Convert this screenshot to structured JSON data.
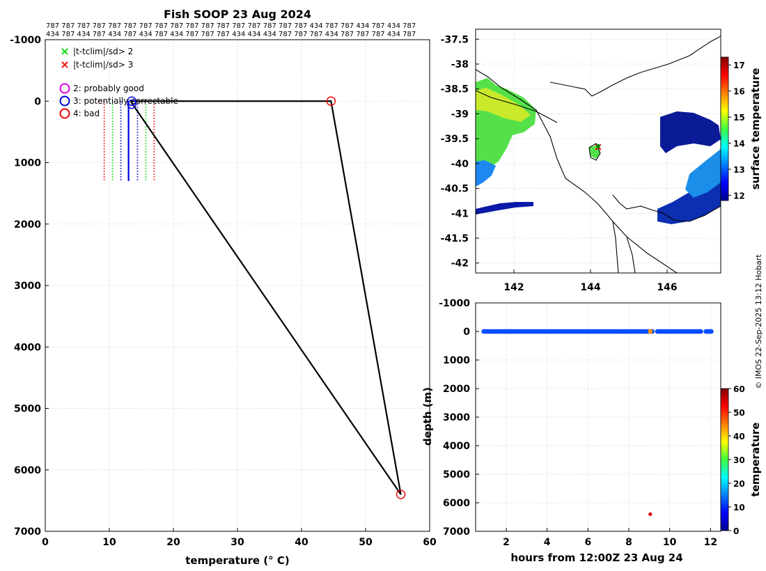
{
  "chart_data": [
    {
      "type": "line",
      "title": "Fish SOOP 23 Aug 2024",
      "xlabel": "temperature (° C)",
      "xlim": [
        0,
        60
      ],
      "ylim": [
        -1000,
        7000
      ],
      "y_reversed": true,
      "xticks": [
        "0",
        "10",
        "20",
        "30",
        "40",
        "50",
        "60"
      ],
      "yticks": [
        "-1000",
        "0",
        "1000",
        "2000",
        "3000",
        "4000",
        "5000",
        "6000",
        "7000"
      ],
      "grid": true,
      "top_labels_row1": "787 787 787 787 787 787 787 787 787 787 787 787 787 787 787 787 787 434 787 787 434 787 434 787",
      "top_labels_row2": "434 787 434 787 434 787 434 787 434 787 787 787 434 434 434 787 787 787 434 787 787 787 434 787",
      "legend": [
        {
          "label": "|t-tclim|/sd> 2",
          "marker": "x",
          "color": "#00dd00"
        },
        {
          "label": "|t-tclim|/sd> 3",
          "marker": "x",
          "color": "#ee0000"
        },
        {
          "label": "2: probably good",
          "marker": "o",
          "color": "#dd00dd"
        },
        {
          "label": "3: potentially correctable",
          "marker": "o",
          "color": "#0000dd"
        },
        {
          "label": "4: bad",
          "marker": "o",
          "color": "#ee0000"
        }
      ],
      "profile": {
        "x": [
          13.3,
          44.6,
          55.5,
          13.3
        ],
        "y": [
          0,
          0,
          6400,
          0
        ],
        "color": "#000000"
      },
      "flag_markers": [
        {
          "x": 44.6,
          "y": 0,
          "flag": "4: bad",
          "color": "#ee0000"
        },
        {
          "x": 55.5,
          "y": 6400,
          "flag": "4: bad",
          "color": "#ee0000"
        },
        {
          "x": 13.5,
          "y": 0,
          "flag": "3: potentially correctable",
          "color": "#0000dd"
        },
        {
          "x": 13.5,
          "y": 50,
          "flag": "3: potentially correctable",
          "color": "#0000dd"
        }
      ],
      "climatology_bounds": [
        {
          "x": 9.2,
          "style": "dotted",
          "color": "#ee0000"
        },
        {
          "x": 10.5,
          "style": "dotted",
          "color": "#00dd00"
        },
        {
          "x": 11.8,
          "style": "dotted",
          "color": "#0000dd"
        },
        {
          "x": 13.0,
          "style": "solid",
          "color": "#0000dd"
        },
        {
          "x": 14.4,
          "style": "dotted",
          "color": "#0000dd"
        },
        {
          "x": 15.7,
          "style": "dotted",
          "color": "#00dd00"
        },
        {
          "x": 17.0,
          "style": "dotted",
          "color": "#ee0000"
        }
      ],
      "climatology_depth": [
        0,
        1300
      ]
    },
    {
      "type": "heatmap",
      "xticks": [
        "142",
        "144",
        "146"
      ],
      "yticks": [
        "-37.5",
        "-38",
        "-38.5",
        "-39",
        "-39.5",
        "-40",
        "-40.5",
        "-41",
        "-41.5",
        "-42"
      ],
      "xlim": [
        141,
        147.4
      ],
      "ylim": [
        -42.2,
        -37.3
      ],
      "colorbar": {
        "label": "surface temperature",
        "min": 11.8,
        "max": 17.3,
        "ticks": [
          "12",
          "13",
          "14",
          "15",
          "16",
          "17"
        ]
      },
      "track_point": {
        "lon": 144.2,
        "lat": -39.65
      }
    },
    {
      "type": "scatter",
      "xlabel": "hours from 12:00Z 23 Aug 24",
      "ylabel": "depth (m)",
      "xlim": [
        0.5,
        12.5
      ],
      "ylim": [
        -1000,
        7000
      ],
      "y_reversed": true,
      "xticks": [
        "2",
        "4",
        "6",
        "8",
        "10",
        "12"
      ],
      "yticks": [
        "-1000",
        "0",
        "1000",
        "2000",
        "3000",
        "4000",
        "5000",
        "6000",
        "7000"
      ],
      "surface_series": {
        "x_start": 0.9,
        "x_end": 12.1,
        "y": 0,
        "value": 12,
        "gaps": [
          [
            9.15,
            9.35
          ],
          [
            11.55,
            11.7
          ]
        ]
      },
      "points": [
        {
          "x": 9.05,
          "y": 0,
          "value": 44
        },
        {
          "x": 9.05,
          "y": 6400,
          "value": 55
        }
      ],
      "colorbar": {
        "label": "temperature",
        "min": 0,
        "max": 60,
        "ticks": [
          "0",
          "10",
          "20",
          "30",
          "40",
          "50",
          "60"
        ]
      }
    }
  ],
  "footer": {
    "copyright": "© IMOS 22-Sep-2025 13:12 Hobart"
  }
}
